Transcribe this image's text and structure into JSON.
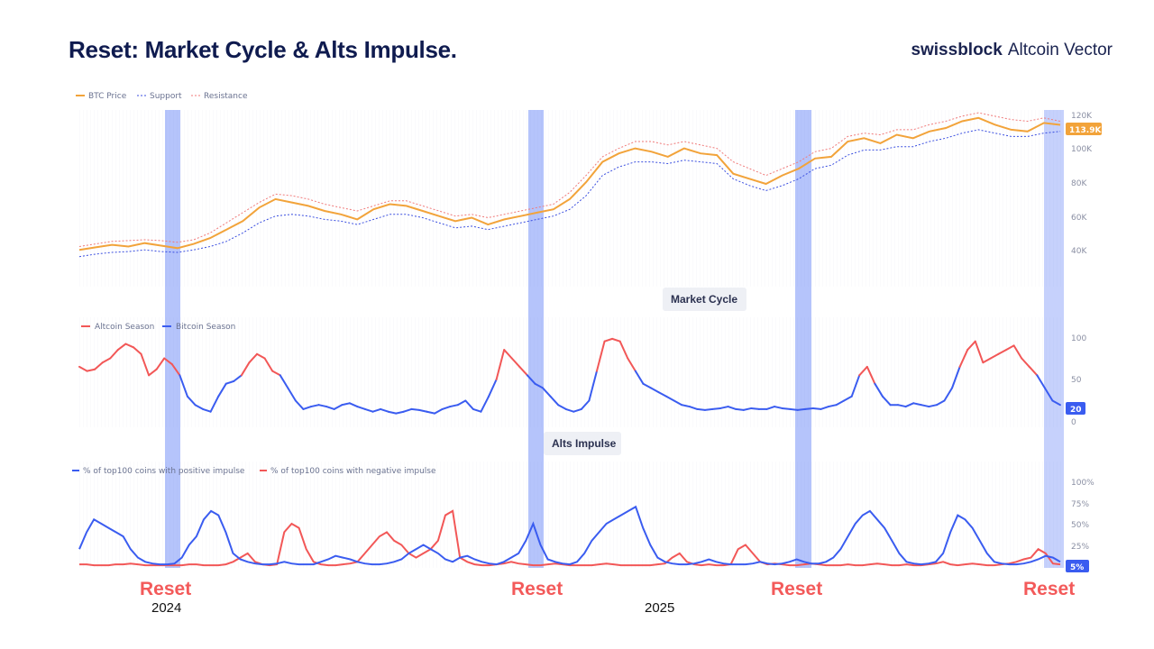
{
  "header": {
    "title": "Reset: Market Cycle & Alts Impulse.",
    "brand_bold": "swissblock",
    "brand_light": "Altcoin Vector"
  },
  "chart_data": [
    {
      "type": "line",
      "legend": [
        "BTC Price",
        "Support",
        "Resistance"
      ],
      "y_ticks": [
        "40K",
        "60K",
        "80K",
        "100K",
        "120K"
      ],
      "ylim": [
        30000,
        120000
      ],
      "last_value_label": "113.9K",
      "colors": {
        "price": "#f2a33a",
        "support": "#3b4fe0",
        "resistance": "#f07a7a"
      },
      "series": [
        {
          "name": "BTC Price",
          "values": [
            40000,
            41500,
            43000,
            42000,
            44000,
            42500,
            41000,
            43500,
            47000,
            52000,
            57000,
            65000,
            70000,
            68000,
            66000,
            63000,
            61000,
            58000,
            64000,
            67000,
            66000,
            63000,
            60000,
            57000,
            59000,
            55000,
            58000,
            60000,
            62000,
            64000,
            70000,
            80000,
            92000,
            97000,
            100000,
            98000,
            95000,
            100000,
            97000,
            96000,
            85000,
            82000,
            79000,
            84000,
            88000,
            94000,
            95000,
            104000,
            106000,
            103000,
            108000,
            106000,
            110000,
            112000,
            116000,
            118000,
            114000,
            111000,
            110000,
            115000,
            113900
          ]
        },
        {
          "name": "Support",
          "values": [
            36000,
            37500,
            38500,
            39000,
            40000,
            39000,
            38500,
            40000,
            42000,
            45000,
            50000,
            56000,
            60000,
            61000,
            60000,
            58000,
            57000,
            55000,
            58000,
            61000,
            61000,
            59000,
            56000,
            53000,
            54000,
            52000,
            54000,
            56000,
            58000,
            60000,
            64000,
            72000,
            84000,
            89000,
            92000,
            92000,
            91000,
            93000,
            92000,
            91000,
            82000,
            78000,
            75000,
            78000,
            82000,
            88000,
            90000,
            96000,
            99000,
            99000,
            101000,
            101000,
            104000,
            106000,
            109000,
            111000,
            109000,
            107000,
            107000,
            109000,
            110000
          ]
        },
        {
          "name": "Resistance",
          "values": [
            42000,
            43500,
            45000,
            45500,
            46000,
            45500,
            44500,
            46000,
            50000,
            56000,
            62000,
            68000,
            73000,
            72000,
            70000,
            67000,
            65000,
            63000,
            66000,
            69000,
            69000,
            66000,
            63000,
            60000,
            61000,
            59000,
            61000,
            63000,
            65000,
            67000,
            74000,
            84000,
            95000,
            100000,
            104000,
            104000,
            102000,
            104000,
            102000,
            100000,
            92000,
            88000,
            84000,
            88000,
            92000,
            98000,
            100000,
            107000,
            109000,
            108000,
            111000,
            111000,
            114000,
            116000,
            119000,
            121000,
            119000,
            117000,
            116000,
            118000,
            116000
          ]
        }
      ]
    },
    {
      "type": "line",
      "title": "Market Cycle",
      "legend": [
        "Altcoin Season",
        "Bitcoin Season"
      ],
      "y_ticks": [
        "0",
        "50",
        "100"
      ],
      "ylim": [
        0,
        100
      ],
      "last_value_label": "20",
      "threshold": 55,
      "colors": {
        "alt": "#f25757",
        "btc": "#3a5cf0"
      },
      "values": [
        65,
        60,
        62,
        70,
        75,
        85,
        92,
        88,
        80,
        55,
        62,
        75,
        68,
        55,
        30,
        20,
        15,
        12,
        30,
        45,
        48,
        55,
        70,
        80,
        75,
        60,
        55,
        40,
        25,
        15,
        18,
        20,
        18,
        15,
        20,
        22,
        18,
        15,
        12,
        15,
        12,
        10,
        12,
        15,
        14,
        12,
        10,
        15,
        18,
        20,
        25,
        15,
        12,
        30,
        50,
        85,
        75,
        65,
        55,
        45,
        40,
        30,
        20,
        15,
        12,
        15,
        25,
        60,
        95,
        98,
        95,
        75,
        60,
        45,
        40,
        35,
        30,
        25,
        20,
        18,
        15,
        14,
        15,
        16,
        18,
        15,
        14,
        16,
        15,
        15,
        18,
        16,
        15,
        14,
        15,
        16,
        15,
        18,
        20,
        25,
        30,
        55,
        65,
        45,
        30,
        20,
        20,
        18,
        22,
        20,
        18,
        20,
        25,
        40,
        65,
        85,
        95,
        70,
        75,
        80,
        85,
        90,
        75,
        65,
        55,
        40,
        25,
        20
      ]
    },
    {
      "type": "line",
      "title": "Alts Impulse",
      "legend": [
        "% of top100 coins with positive impulse",
        "% of top100 coins with negative impulse"
      ],
      "y_ticks": [
        "25%",
        "50%",
        "75%",
        "100%"
      ],
      "ylim": [
        0,
        100
      ],
      "last_value_label": "5%",
      "colors": {
        "positive": "#3a5cf0",
        "negative": "#f25757"
      },
      "series": [
        {
          "name": "% of top100 coins with positive impulse",
          "values": [
            20,
            40,
            55,
            50,
            45,
            40,
            35,
            20,
            10,
            5,
            3,
            2,
            2,
            3,
            10,
            25,
            35,
            55,
            65,
            60,
            40,
            15,
            8,
            5,
            3,
            2,
            2,
            3,
            5,
            3,
            2,
            2,
            2,
            5,
            8,
            12,
            10,
            8,
            5,
            3,
            2,
            2,
            3,
            5,
            8,
            15,
            20,
            25,
            20,
            15,
            8,
            5,
            10,
            12,
            8,
            5,
            3,
            2,
            5,
            10,
            15,
            30,
            50,
            25,
            8,
            5,
            3,
            2,
            5,
            15,
            30,
            40,
            50,
            55,
            60,
            65,
            70,
            45,
            25,
            10,
            5,
            3,
            2,
            2,
            3,
            5,
            8,
            5,
            3,
            2,
            2,
            2,
            3,
            5,
            3,
            2,
            3,
            5,
            8,
            5,
            3,
            3,
            5,
            10,
            20,
            35,
            50,
            60,
            65,
            55,
            45,
            30,
            15,
            5,
            3,
            2,
            3,
            5,
            15,
            40,
            60,
            55,
            45,
            30,
            15,
            5,
            3,
            2,
            2,
            3,
            5,
            8,
            12,
            10,
            5
          ]
        },
        {
          "name": "% of top100 coins with negative impulse",
          "values": [
            2,
            2,
            1,
            1,
            1,
            2,
            2,
            3,
            2,
            1,
            1,
            1,
            1,
            1,
            1,
            2,
            2,
            1,
            1,
            1,
            2,
            5,
            10,
            15,
            5,
            2,
            1,
            2,
            40,
            50,
            45,
            20,
            5,
            2,
            1,
            1,
            2,
            3,
            5,
            15,
            25,
            35,
            40,
            30,
            25,
            15,
            10,
            15,
            20,
            30,
            60,
            65,
            10,
            5,
            2,
            1,
            1,
            2,
            3,
            5,
            3,
            2,
            1,
            1,
            2,
            3,
            2,
            1,
            1,
            1,
            1,
            2,
            3,
            2,
            1,
            1,
            1,
            1,
            1,
            2,
            3,
            10,
            15,
            5,
            2,
            1,
            2,
            1,
            1,
            2,
            20,
            25,
            15,
            5,
            2,
            3,
            2,
            1,
            1,
            2,
            3,
            2,
            1,
            1,
            1,
            2,
            1,
            1,
            2,
            3,
            2,
            1,
            1,
            2,
            1,
            1,
            2,
            3,
            5,
            2,
            1,
            2,
            3,
            2,
            1,
            1,
            2,
            3,
            5,
            8,
            10,
            20,
            15,
            3,
            2
          ]
        }
      ]
    }
  ],
  "overlay": {
    "reset_label": "Reset",
    "resets": [
      "Reset",
      "Reset",
      "Reset",
      "Reset"
    ],
    "years": [
      "2024",
      "2025"
    ],
    "band_color": "#5b7cf7"
  }
}
